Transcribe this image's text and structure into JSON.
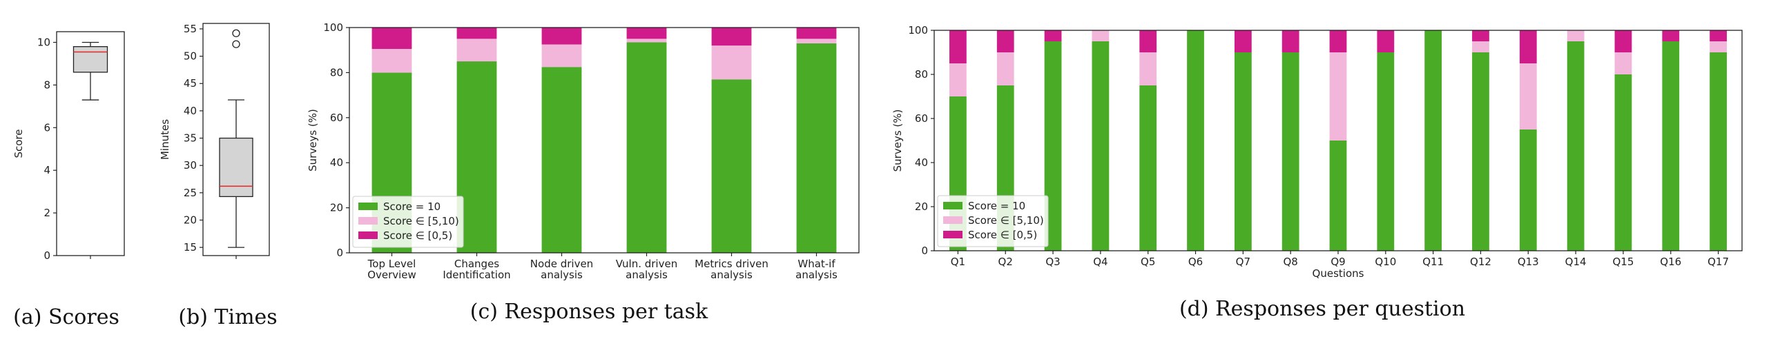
{
  "colors": {
    "score10": "#4aac26",
    "score5_10": "#f1b6da",
    "score0_5": "#d01c8b",
    "box_fill": "#d4d4d4",
    "median": "#e03030"
  },
  "captions": {
    "a": "(a) Scores",
    "b": "(b) Times",
    "c": "(c) Responses per task",
    "d": "(d) Responses per question"
  },
  "legend": {
    "score10": "Score = 10",
    "score5_10": "Score ∈ [5,10)",
    "score0_5": "Score ∈ [0,5)"
  },
  "chart_data": [
    {
      "id": "a",
      "type": "box",
      "ylabel": "Score",
      "ylim": [
        0,
        10.5
      ],
      "yticks": [
        0,
        2,
        4,
        6,
        8,
        10
      ],
      "whisker_low": 7.3,
      "q1": 8.6,
      "median": 9.55,
      "q3": 9.8,
      "whisker_high": 10.0,
      "outliers": []
    },
    {
      "id": "b",
      "type": "box",
      "ylabel": "Minutes",
      "ylim": [
        13.5,
        56
      ],
      "yticks": [
        15,
        20,
        25,
        30,
        35,
        40,
        45,
        50,
        55
      ],
      "whisker_low": 15,
      "q1": 24.3,
      "median": 26.2,
      "q3": 35,
      "whisker_high": 42,
      "outliers": [
        52.2,
        54.2
      ]
    },
    {
      "id": "c",
      "type": "bar",
      "stacked": true,
      "ylabel": "Surveys (%)",
      "ylim": [
        0,
        100
      ],
      "yticks": [
        0,
        20,
        40,
        60,
        80,
        100
      ],
      "legend_position": "bottom-left",
      "categories": [
        [
          "Top Level",
          "Overview"
        ],
        [
          "Changes",
          "Identification"
        ],
        [
          "Node driven",
          "analysis"
        ],
        [
          "Vuln. driven",
          "analysis"
        ],
        [
          "Metrics driven",
          "analysis"
        ],
        [
          "What-if",
          "analysis"
        ]
      ],
      "series": [
        {
          "name": "Score = 10",
          "values": [
            80,
            85,
            82.5,
            93.5,
            77,
            93
          ]
        },
        {
          "name": "Score ∈ [5,10)",
          "values": [
            10.5,
            10,
            10,
            1.5,
            15,
            2
          ]
        },
        {
          "name": "Score ∈ [0,5)",
          "values": [
            9.5,
            5,
            7.5,
            5,
            8,
            5
          ]
        }
      ]
    },
    {
      "id": "d",
      "type": "bar",
      "stacked": true,
      "xlabel": "Questions",
      "ylabel": "Surveys (%)",
      "ylim": [
        0,
        100
      ],
      "yticks": [
        0,
        20,
        40,
        60,
        80,
        100
      ],
      "legend_position": "bottom-left",
      "categories": [
        "Q1",
        "Q2",
        "Q3",
        "Q4",
        "Q5",
        "Q6",
        "Q7",
        "Q8",
        "Q9",
        "Q10",
        "Q11",
        "Q12",
        "Q13",
        "Q14",
        "Q15",
        "Q16",
        "Q17"
      ],
      "series": [
        {
          "name": "Score = 10",
          "values": [
            70,
            75,
            95,
            95,
            75,
            100,
            90,
            90,
            50,
            90,
            100,
            90,
            55,
            95,
            80,
            95,
            90
          ]
        },
        {
          "name": "Score ∈ [5,10)",
          "values": [
            15,
            15,
            0,
            5,
            15,
            0,
            0,
            0,
            40,
            0,
            0,
            5,
            30,
            5,
            10,
            0,
            5
          ]
        },
        {
          "name": "Score ∈ [0,5)",
          "values": [
            15,
            10,
            5,
            0,
            10,
            0,
            10,
            10,
            10,
            10,
            0,
            5,
            15,
            0,
            10,
            5,
            5
          ]
        }
      ]
    }
  ]
}
